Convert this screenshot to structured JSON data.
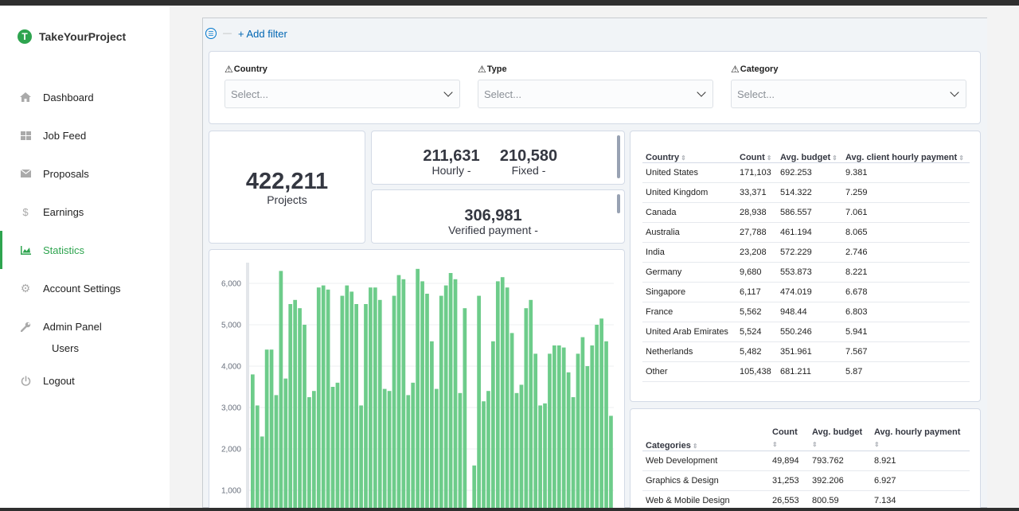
{
  "app": {
    "name": "TakeYourProject",
    "logo_letter": "T"
  },
  "sidebar": {
    "items": [
      {
        "label": "Dashboard",
        "icon": "home-icon"
      },
      {
        "label": "Job Feed",
        "icon": "grid-icon"
      },
      {
        "label": "Proposals",
        "icon": "mail-icon"
      },
      {
        "label": "Earnings",
        "icon": "dollar-icon"
      },
      {
        "label": "Statistics",
        "icon": "chart-icon",
        "active": true
      },
      {
        "label": "Account Settings",
        "icon": "gear-icon"
      },
      {
        "label": "Admin Panel",
        "icon": "wrench-icon"
      },
      {
        "label": "Logout",
        "icon": "power-icon"
      }
    ],
    "sub_items": [
      {
        "label": "Users"
      }
    ]
  },
  "filter_bar": {
    "add_filter": "+ Add filter"
  },
  "controls": [
    {
      "label": "Country",
      "placeholder": "Select..."
    },
    {
      "label": "Type",
      "placeholder": "Select..."
    },
    {
      "label": "Category",
      "placeholder": "Select..."
    }
  ],
  "metrics": {
    "projects": {
      "value": "422,211",
      "label": "Projects"
    },
    "hourly": {
      "value": "211,631",
      "label": "Hourly -"
    },
    "fixed": {
      "value": "210,580",
      "label": "Fixed -"
    },
    "verified": {
      "value": "306,981",
      "label": "Verified payment -"
    }
  },
  "country_table": {
    "headers": [
      "Country",
      "Count",
      "Avg. budget",
      "Avg. client hourly payment"
    ],
    "rows": [
      [
        "United States",
        "171,103",
        "692.253",
        "9.381"
      ],
      [
        "United Kingdom",
        "33,371",
        "514.322",
        "7.259"
      ],
      [
        "Canada",
        "28,938",
        "586.557",
        "7.061"
      ],
      [
        "Australia",
        "27,788",
        "461.194",
        "8.065"
      ],
      [
        "India",
        "23,208",
        "572.229",
        "2.746"
      ],
      [
        "Germany",
        "9,680",
        "553.873",
        "8.221"
      ],
      [
        "Singapore",
        "6,117",
        "474.019",
        "6.678"
      ],
      [
        "France",
        "5,562",
        "948.44",
        "6.803"
      ],
      [
        "United Arab Emirates",
        "5,524",
        "550.246",
        "5.941"
      ],
      [
        "Netherlands",
        "5,482",
        "351.961",
        "7.567"
      ],
      [
        "Other",
        "105,438",
        "681.211",
        "5.87"
      ]
    ]
  },
  "category_table": {
    "headers": [
      "Categories",
      "Count",
      "Avg. budget",
      "Avg. hourly payment"
    ],
    "rows": [
      [
        "Web Development",
        "49,894",
        "793.762",
        "8.921"
      ],
      [
        "Graphics & Design",
        "31,253",
        "392.206",
        "6.927"
      ],
      [
        "Web & Mobile Design",
        "26,553",
        "800.59",
        "7.134"
      ]
    ]
  },
  "chart_data": {
    "type": "bar",
    "ytick_labels": [
      "1,000",
      "2,000",
      "3,000",
      "4,000",
      "5,000",
      "6,000"
    ],
    "yticks": [
      1000,
      2000,
      3000,
      4000,
      5000,
      6000
    ],
    "ylim": [
      0,
      6500
    ],
    "color": "#6dcc8a",
    "values": [
      3800,
      3050,
      2300,
      4400,
      4400,
      3300,
      6300,
      3700,
      5500,
      5600,
      5400,
      5000,
      3250,
      3400,
      5900,
      5950,
      5850,
      3500,
      3600,
      5700,
      5950,
      5800,
      5500,
      3050,
      5500,
      5900,
      5900,
      5600,
      3450,
      3400,
      5700,
      6200,
      6100,
      3300,
      3600,
      6350,
      6050,
      5750,
      4600,
      3450,
      5700,
      5950,
      6250,
      6100,
      3350,
      5400,
      0,
      1600,
      5700,
      3150,
      3400,
      4600,
      6050,
      6150,
      5900,
      4800,
      3350,
      3550,
      5400,
      5600,
      4300,
      3050,
      3100,
      4300,
      4500,
      4500,
      4450,
      3850,
      3250,
      4300,
      4700,
      4000,
      4500,
      5000,
      5150,
      4600,
      2800
    ]
  },
  "colors": {
    "accent": "#2ea44f",
    "link": "#0066b3",
    "bar": "#6dcc8a"
  }
}
